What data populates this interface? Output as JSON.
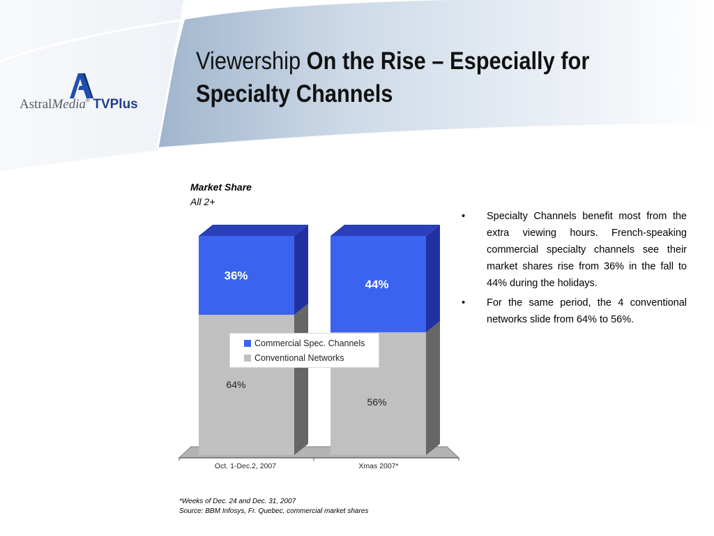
{
  "logo": {
    "astral": "Astral",
    "media": "Media",
    "reg": "®",
    "tvplus": "TVPlus"
  },
  "title": {
    "normal": "Viewership ",
    "bold_line1": "On the Rise – Especially for",
    "bold_line2": "Specialty Channels"
  },
  "chart_caption": {
    "title": "Market Share",
    "subtitle": "All 2+"
  },
  "chart_data": {
    "type": "bar",
    "stacked": true,
    "percent_stacked": true,
    "style": "3d",
    "categories": [
      "Oct. 1-Dec.2, 2007",
      "Xmas 2007*"
    ],
    "series": [
      {
        "name": "Conventional Networks",
        "values": [
          64,
          56
        ],
        "labels": [
          "64%",
          "56%"
        ],
        "color": "#c0c0c0"
      },
      {
        "name": "Commercial Spec. Channels",
        "values": [
          36,
          44
        ],
        "labels": [
          "36%",
          "44%"
        ],
        "color": "#3a64f0"
      }
    ],
    "ylim": [
      0,
      100
    ],
    "grid": false,
    "legend_position": "center"
  },
  "bullets": [
    "Specialty Channels benefit most from the extra viewing hours. French-speaking commercial specialty channels see their market shares rise from 36% in the fall to 44% during the holidays.",
    "For the same period, the 4 conventional networks slide from 64% to 56%."
  ],
  "bullet_symbol": "•",
  "footnotes": [
    "*Weeks of Dec. 24 and Dec. 31, 2007",
    "Source: BBM Infosys, Fr. Quebec, commercial market shares"
  ],
  "colors": {
    "specialty": "#3a64f0",
    "specialty_dark": "#2231a2",
    "conventional": "#c0c0c0",
    "conventional_dark": "#666666",
    "logo_blue": "#1f3f8c"
  }
}
